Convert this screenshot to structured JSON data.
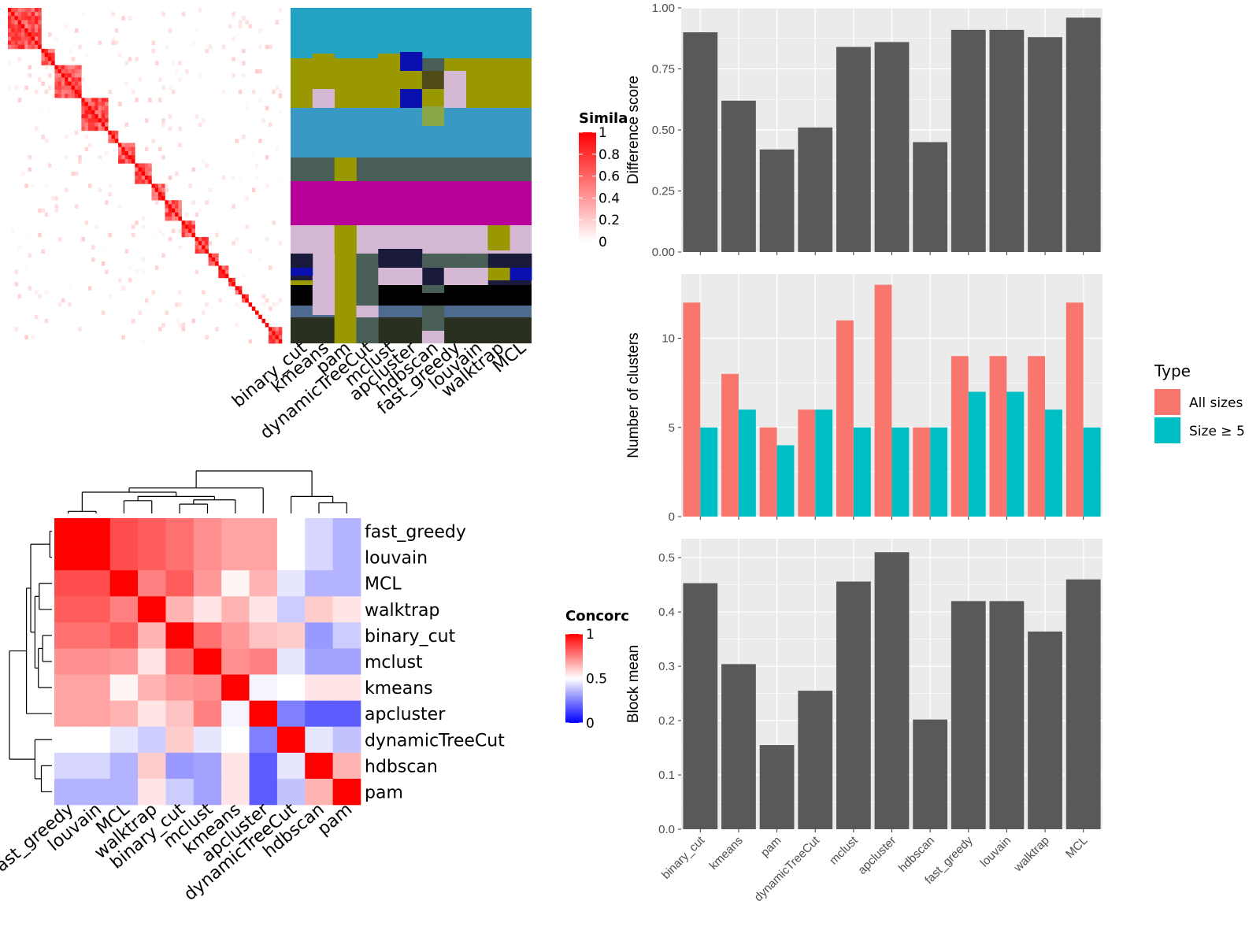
{
  "methods": [
    "binary_cut",
    "kmeans",
    "pam",
    "dynamicTreeCut",
    "mclust",
    "apcluster",
    "hdbscan",
    "fast_greedy",
    "louvain",
    "walktrap",
    "MCL"
  ],
  "colors": {
    "bar": "#595959",
    "panel_bg": "#ebebeb",
    "all_sizes": "#F8766D",
    "size_ge5": "#00BFC4",
    "heat_high": "#ff0000",
    "heat_low": "#ffffff",
    "concord_low": "#0000ff"
  },
  "chart_data": [
    {
      "id": "similarity",
      "type": "heatmap",
      "legend_title": "Simila",
      "legend_ticks": [
        "1",
        "0.8",
        "0.6",
        "0.4",
        "0.2",
        "0"
      ]
    },
    {
      "id": "partition",
      "type": "heatmap",
      "columns": [
        "binary_cut",
        "kmeans",
        "pam",
        "dynamicTreeCut",
        "mclust",
        "apcluster",
        "hdbscan",
        "fast_greedy",
        "louvain",
        "walktrap",
        "MCL"
      ]
    },
    {
      "id": "concordance",
      "type": "heatmap",
      "legend_title": "Concorc",
      "legend_ticks": [
        "1",
        "0.5",
        "0"
      ],
      "order": [
        "fast_greedy",
        "louvain",
        "MCL",
        "walktrap",
        "binary_cut",
        "mclust",
        "kmeans",
        "apcluster",
        "dynamicTreeCut",
        "hdbscan",
        "pam"
      ],
      "matrix": [
        [
          1.0,
          1.0,
          0.85,
          0.82,
          0.78,
          0.72,
          0.68,
          0.68,
          0.5,
          0.42,
          0.35
        ],
        [
          1.0,
          1.0,
          0.85,
          0.82,
          0.78,
          0.72,
          0.68,
          0.68,
          0.5,
          0.42,
          0.35
        ],
        [
          0.85,
          0.85,
          1.0,
          0.75,
          0.82,
          0.7,
          0.52,
          0.65,
          0.45,
          0.35,
          0.35
        ],
        [
          0.82,
          0.82,
          0.75,
          1.0,
          0.65,
          0.55,
          0.65,
          0.55,
          0.4,
          0.6,
          0.55
        ],
        [
          0.78,
          0.78,
          0.82,
          0.65,
          1.0,
          0.78,
          0.7,
          0.62,
          0.6,
          0.3,
          0.4
        ],
        [
          0.72,
          0.72,
          0.7,
          0.55,
          0.78,
          1.0,
          0.72,
          0.75,
          0.45,
          0.32,
          0.32
        ],
        [
          0.68,
          0.68,
          0.52,
          0.65,
          0.7,
          0.72,
          1.0,
          0.48,
          0.5,
          0.55,
          0.55
        ],
        [
          0.68,
          0.68,
          0.65,
          0.55,
          0.62,
          0.75,
          0.48,
          1.0,
          0.25,
          0.18,
          0.18
        ],
        [
          0.5,
          0.5,
          0.45,
          0.4,
          0.6,
          0.45,
          0.5,
          0.25,
          1.0,
          0.45,
          0.38
        ],
        [
          0.42,
          0.42,
          0.35,
          0.6,
          0.3,
          0.32,
          0.55,
          0.18,
          0.45,
          1.0,
          0.65
        ],
        [
          0.35,
          0.35,
          0.35,
          0.55,
          0.4,
          0.32,
          0.55,
          0.18,
          0.38,
          0.65,
          1.0
        ]
      ]
    },
    {
      "id": "difference",
      "type": "bar",
      "ylabel": "Difference score",
      "ylim": [
        0,
        1
      ],
      "yticks": [
        "0.00",
        "0.25",
        "0.50",
        "0.75",
        "1.00"
      ],
      "values": [
        0.9,
        0.62,
        0.42,
        0.51,
        0.84,
        0.86,
        0.45,
        0.91,
        0.91,
        0.88,
        0.96
      ]
    },
    {
      "id": "clusters",
      "type": "bar",
      "ylabel": "Number of clusters",
      "ylim": [
        0,
        13.6
      ],
      "yticks": [
        "0",
        "5",
        "10"
      ],
      "legend_title": "Type",
      "series": [
        {
          "name": "All sizes",
          "values": [
            12,
            8,
            5,
            6,
            11,
            13,
            5,
            9,
            9,
            9,
            12
          ]
        },
        {
          "name": "Size ≥ 5",
          "values": [
            5,
            6,
            4,
            6,
            5,
            5,
            5,
            7,
            7,
            6,
            5
          ]
        }
      ]
    },
    {
      "id": "blockmean",
      "type": "bar",
      "ylabel": "Block mean",
      "ylim": [
        0,
        0.535
      ],
      "yticks": [
        "0.0",
        "0.1",
        "0.2",
        "0.3",
        "0.4",
        "0.5"
      ],
      "values": [
        0.453,
        0.304,
        0.155,
        0.255,
        0.456,
        0.51,
        0.202,
        0.42,
        0.42,
        0.364,
        0.46
      ]
    }
  ]
}
